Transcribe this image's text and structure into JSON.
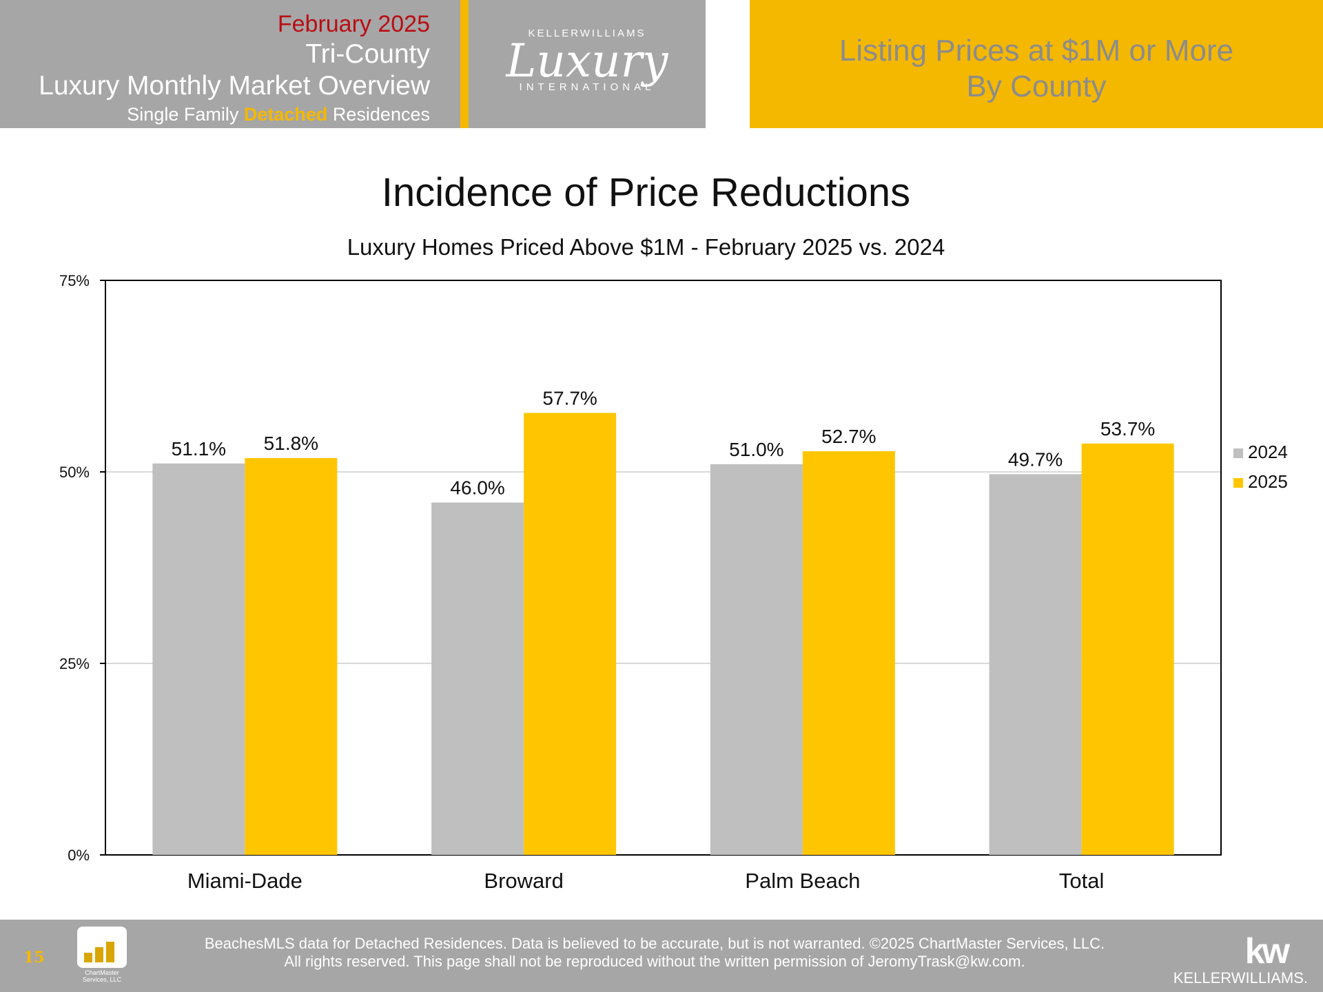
{
  "header": {
    "date": "February 2025",
    "line1": "Tri-County",
    "line2": "Luxury Monthly Market Overview",
    "sub_pre": "Single Family ",
    "sub_bold": "Detached",
    "sub_post": " Residences",
    "logo_top": "KELLERWILLIAMS",
    "logo_main": "Luxury",
    "logo_bottom": "INTERNATIONAL",
    "right_title_1": "Listing Prices at $1M or More",
    "right_title_2": "By County"
  },
  "chart_data": {
    "type": "bar",
    "title": "Incidence of Price Reductions",
    "subtitle": "Luxury Homes Priced Above $1M - February 2025 vs. 2024",
    "categories": [
      "Miami-Dade",
      "Broward",
      "Palm Beach",
      "Total"
    ],
    "series": [
      {
        "name": "2024",
        "values": [
          51.1,
          46.0,
          51.0,
          49.7
        ],
        "labels": [
          "51.1%",
          "46.0%",
          "51.0%",
          "49.7%"
        ],
        "color": "#bfbfbf"
      },
      {
        "name": "2025",
        "values": [
          51.8,
          57.7,
          52.7,
          53.7
        ],
        "labels": [
          "51.8%",
          "57.7%",
          "52.7%",
          "53.7%"
        ],
        "color": "#ffc600"
      }
    ],
    "ylim": [
      0,
      75
    ],
    "yticks": [
      0,
      25,
      50,
      75
    ],
    "ytick_labels": [
      "0%",
      "25%",
      "50%",
      "75%"
    ],
    "grid": true,
    "legend": "right"
  },
  "footer": {
    "page": "15",
    "logo_text": "ChartMaster Services, LLC",
    "line1": "BeachesMLS data for Detached Residences.  Data is believed to be accurate, but is not warranted.   ©2025  ChartMaster Services, LLC.",
    "line2": "All rights reserved. This page shall not be reproduced without the written permission of JeromyTrask@kw.com.",
    "kw_mark": "kw",
    "kw_name": "KELLERWILLIAMS."
  }
}
